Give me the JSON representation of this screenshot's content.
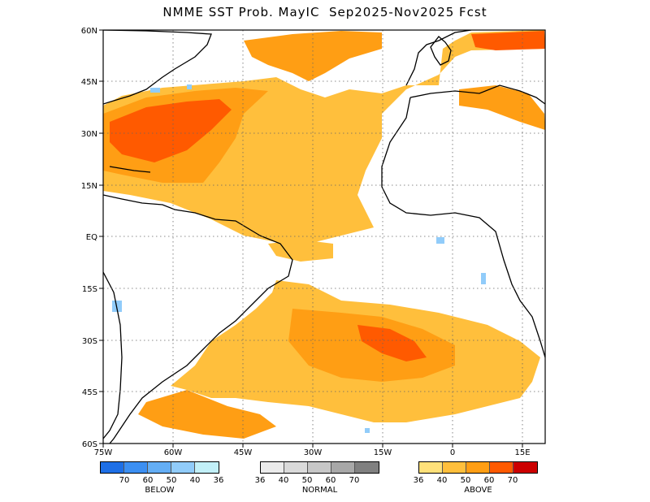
{
  "title": "NMME SST Prob. MayIC  Sep2025-Nov2025 Fcst",
  "map": {
    "region": "Atlantic Ocean",
    "lon_range": [
      -75,
      20
    ],
    "lat_range": [
      -60,
      60
    ],
    "lat_labels": [
      "60N",
      "45N",
      "30N",
      "15N",
      "EQ",
      "15S",
      "30S",
      "45S",
      "60S"
    ],
    "lon_labels": [
      "75W",
      "60W",
      "45W",
      "30W",
      "15W",
      "0",
      "15E"
    ],
    "grid": "dotted"
  },
  "legend": {
    "below": {
      "caption": "BELOW",
      "ticks": [
        "70",
        "60",
        "50",
        "40",
        "36"
      ],
      "colors": [
        "#1e6fe6",
        "#3c8ff2",
        "#64aef5",
        "#91ccfa",
        "#c2f0f8"
      ]
    },
    "normal": {
      "caption": "NORMAL",
      "ticks": [
        "36",
        "40",
        "50",
        "60",
        "70"
      ],
      "colors": [
        "#ebebeb",
        "#dadada",
        "#c7c7c7",
        "#a8a8a8",
        "#808080"
      ]
    },
    "above": {
      "caption": "ABOVE",
      "ticks": [
        "36",
        "40",
        "50",
        "60",
        "70"
      ],
      "colors": [
        "#ffe17a",
        "#ffbf3c",
        "#ff9e14",
        "#ff5a00",
        "#cc0000"
      ]
    }
  }
}
